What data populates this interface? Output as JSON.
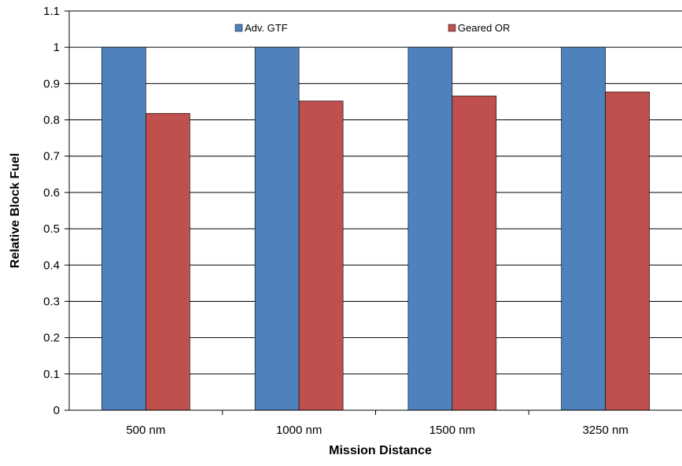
{
  "chart_data": {
    "type": "bar",
    "title": "",
    "xlabel": "Mission Distance",
    "ylabel": "Relative Block Fuel",
    "categories": [
      "500 nm",
      "1000 nm",
      "1500 nm",
      "3250 nm"
    ],
    "series": [
      {
        "name": "Adv. GTF",
        "color": "#4F81BD",
        "values": [
          1.0,
          1.0,
          1.0,
          1.0
        ]
      },
      {
        "name": "Geared OR",
        "color": "#C0504D",
        "values": [
          0.818,
          0.852,
          0.866,
          0.877
        ]
      }
    ],
    "ylim": [
      0,
      1.1
    ],
    "yticks": [
      "0",
      "0.1",
      "0.2",
      "0.3",
      "0.4",
      "0.5",
      "0.6",
      "0.7",
      "0.8",
      "0.9",
      "1",
      "1.1"
    ],
    "grid": true,
    "legend_position": "top"
  }
}
